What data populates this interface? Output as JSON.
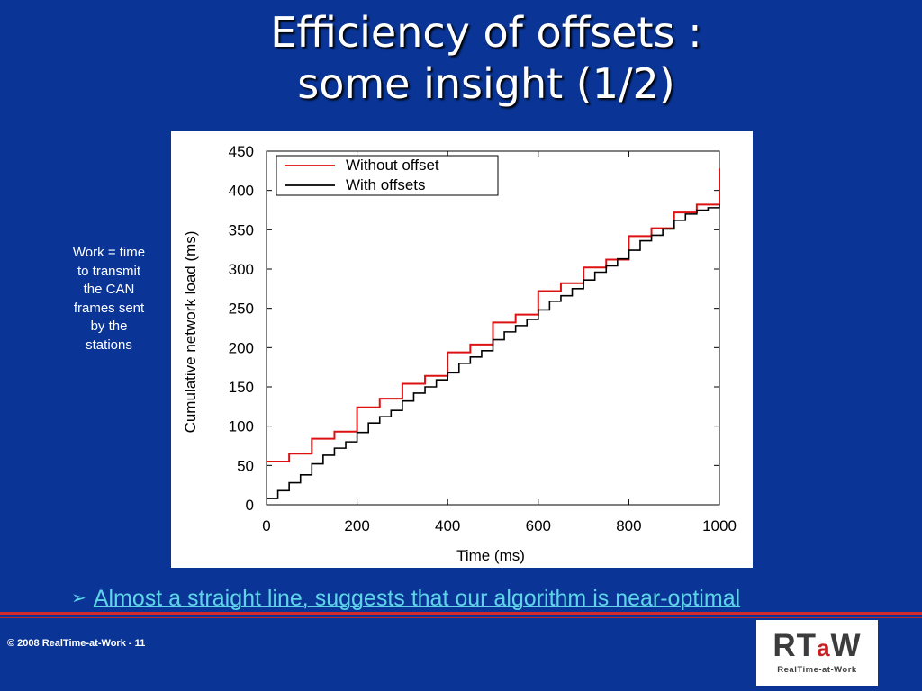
{
  "slide": {
    "title_line1": "Efficiency of offsets :",
    "title_line2": "some insight (1/2)",
    "side_note": "Work = time to transmit the CAN frames sent by the stations",
    "bullet_arrow": "➢",
    "bullet": "Almost a straight line, suggests that our algorithm is near-optimal",
    "footer": "© 2008 RealTime-at-Work - 11",
    "logo_text_r": "RT",
    "logo_text_a": "a",
    "logo_text_w": "W",
    "logo_subtitle": "RealTime-at-Work"
  },
  "colors": {
    "background": "#0a3596",
    "bullet_text": "#5fd3e8",
    "accent_rule": "#d12b2b"
  },
  "chart_data": {
    "type": "line",
    "title": "",
    "xlabel": "Time (ms)",
    "ylabel": "Cumulative network load (ms)",
    "xlim": [
      0,
      1000
    ],
    "ylim": [
      0,
      450
    ],
    "xticks": [
      0,
      200,
      400,
      600,
      800,
      1000
    ],
    "yticks": [
      0,
      50,
      100,
      150,
      200,
      250,
      300,
      350,
      400,
      450
    ],
    "grid": false,
    "legend_position": "top-left",
    "series": [
      {
        "name": "Without offset",
        "color": "#dd1111",
        "step": true,
        "x": [
          0,
          50,
          100,
          150,
          200,
          250,
          300,
          350,
          400,
          450,
          500,
          550,
          600,
          650,
          700,
          750,
          800,
          850,
          900,
          950,
          1000
        ],
        "y": [
          55,
          65,
          84,
          93,
          124,
          135,
          154,
          164,
          194,
          204,
          232,
          242,
          272,
          282,
          302,
          312,
          342,
          352,
          372,
          382,
          428
        ]
      },
      {
        "name": "With offsets",
        "color": "#000000",
        "step": true,
        "x": [
          0,
          25,
          50,
          75,
          100,
          125,
          150,
          175,
          200,
          225,
          250,
          275,
          300,
          325,
          350,
          375,
          400,
          425,
          450,
          475,
          500,
          525,
          550,
          575,
          600,
          625,
          650,
          675,
          700,
          725,
          750,
          775,
          800,
          825,
          850,
          875,
          900,
          925,
          950,
          975,
          1000
        ],
        "y": [
          8,
          18,
          28,
          38,
          52,
          63,
          72,
          80,
          92,
          104,
          112,
          120,
          132,
          142,
          150,
          159,
          168,
          180,
          188,
          196,
          210,
          220,
          228,
          236,
          248,
          259,
          266,
          275,
          286,
          296,
          304,
          313,
          324,
          336,
          343,
          351,
          362,
          370,
          375,
          378,
          382
        ]
      }
    ]
  }
}
